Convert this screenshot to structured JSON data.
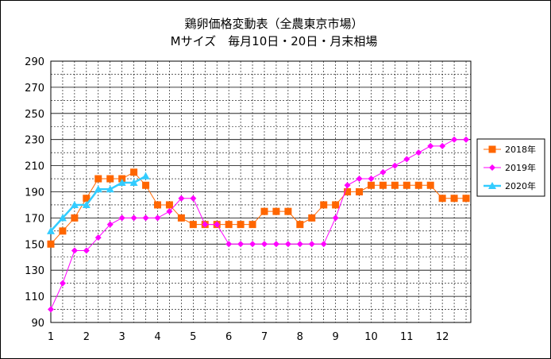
{
  "chart_data": {
    "type": "line",
    "title": "鶏卵価格変動表（全農東京市場）",
    "subtitle": "Mサイズ　毎月10日・20日・月末相場",
    "xlabel": "",
    "ylabel": "",
    "ylim": [
      90,
      290
    ],
    "yticks": [
      90,
      110,
      130,
      150,
      170,
      190,
      210,
      230,
      250,
      270,
      290
    ],
    "xlim": [
      1,
      12.8
    ],
    "xticks": [
      1,
      2,
      3,
      4,
      5,
      6,
      7,
      8,
      9,
      10,
      11,
      12
    ],
    "grid": true,
    "legend_position": "right",
    "series": [
      {
        "name": "2018年",
        "color": "#ff6600",
        "marker": "square",
        "x": [
          1,
          1.333,
          1.667,
          2,
          2.333,
          2.667,
          3,
          3.333,
          3.667,
          4,
          4.333,
          4.667,
          5,
          5.333,
          5.667,
          6,
          6.333,
          6.667,
          7,
          7.333,
          7.667,
          8,
          8.333,
          8.667,
          9,
          9.333,
          9.667,
          10,
          10.333,
          10.667,
          11,
          11.333,
          11.667,
          12,
          12.333,
          12.667
        ],
        "values": [
          150,
          160,
          170,
          185,
          200,
          200,
          200,
          205,
          195,
          180,
          180,
          170,
          165,
          165,
          165,
          165,
          165,
          165,
          175,
          175,
          175,
          165,
          170,
          180,
          180,
          190,
          190,
          195,
          195,
          195,
          195,
          195,
          195,
          185,
          185,
          185
        ]
      },
      {
        "name": "2019年",
        "color": "#ff00ff",
        "marker": "diamond",
        "x": [
          1,
          1.333,
          1.667,
          2,
          2.333,
          2.667,
          3,
          3.333,
          3.667,
          4,
          4.333,
          4.667,
          5,
          5.333,
          5.667,
          6,
          6.333,
          6.667,
          7,
          7.333,
          7.667,
          8,
          8.333,
          8.667,
          9,
          9.333,
          9.667,
          10,
          10.333,
          10.667,
          11,
          11.333,
          11.667,
          12,
          12.333,
          12.667
        ],
        "values": [
          100,
          120,
          145,
          145,
          155,
          165,
          170,
          170,
          170,
          170,
          175,
          185,
          185,
          165,
          165,
          150,
          150,
          150,
          150,
          150,
          150,
          150,
          150,
          150,
          170,
          195,
          200,
          200,
          205,
          210,
          215,
          220,
          225,
          225,
          230,
          230
        ]
      },
      {
        "name": "2020年",
        "color": "#33ccff",
        "marker": "triangle",
        "x": [
          1,
          1.333,
          1.667,
          2,
          2.333,
          2.667,
          3,
          3.333,
          3.667
        ],
        "values": [
          160,
          170,
          180,
          180,
          192,
          192,
          197,
          197,
          202
        ]
      }
    ]
  }
}
